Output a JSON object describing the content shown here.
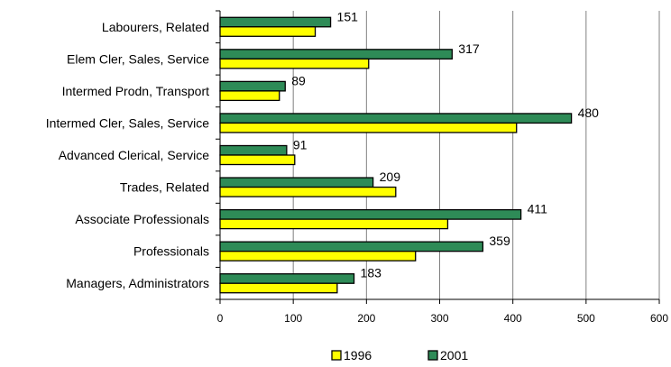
{
  "chart_data": {
    "type": "bar",
    "orientation": "horizontal",
    "title": "",
    "xlabel": "",
    "ylabel": "",
    "categories": [
      "Labourers, Related",
      "Elem Cler, Sales, Service",
      "Intermed Prodn, Transport",
      "Intermed Cler, Sales, Service",
      "Advanced Clerical, Service",
      "Trades, Related",
      "Associate Professionals",
      "Professionals",
      "Managers, Administrators"
    ],
    "series": [
      {
        "name": "1996",
        "color": "#ffff00",
        "values": [
          130,
          203,
          81,
          405,
          102,
          240,
          311,
          267,
          160
        ]
      },
      {
        "name": "2001",
        "color": "#2e8b57",
        "values": [
          151,
          317,
          89,
          480,
          91,
          209,
          411,
          359,
          183
        ],
        "data_labels": [
          "151",
          "317",
          "89",
          "480",
          "91",
          "209",
          "411",
          "359",
          "183"
        ]
      }
    ],
    "xlim": [
      0,
      600
    ],
    "xticks": [
      0,
      100,
      200,
      300,
      400,
      500,
      600
    ],
    "xtick_labels": [
      "0",
      "100",
      "200",
      "300",
      "400",
      "500",
      "600"
    ],
    "grid": true,
    "legend": {
      "position": "bottom",
      "entries": [
        "1996",
        "2001"
      ]
    }
  }
}
